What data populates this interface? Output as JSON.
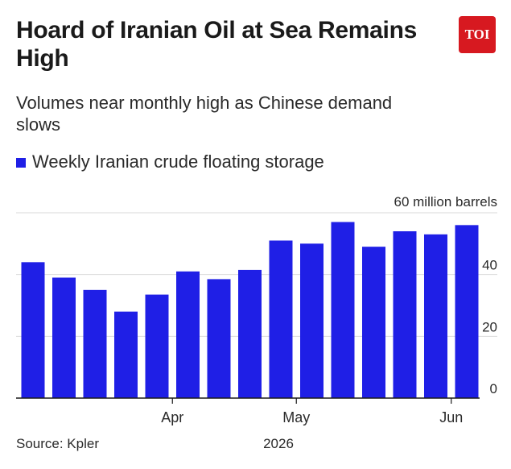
{
  "header": {
    "title": "Hoard of Iranian Oil at Sea Remains High",
    "subtitle": "Volumes near monthly high as Chinese demand slows",
    "logo_text": "TOI",
    "logo_color": "#d71920"
  },
  "legend": {
    "label": "Weekly Iranian crude floating storage",
    "color": "#1f1fe6"
  },
  "footer": {
    "source": "Source: Kpler",
    "year": "2026"
  },
  "chart_data": {
    "type": "bar",
    "title": "Hoard of Iranian Oil at Sea Remains High",
    "subtitle": "Volumes near monthly high as Chinese demand slows",
    "ylabel": "60 million barrels",
    "ylim": [
      0,
      60
    ],
    "y_ticks": [
      "0",
      "20",
      "40",
      "60 million barrels"
    ],
    "grid": true,
    "legend_placement": "top-left",
    "series": [
      {
        "name": "Weekly Iranian crude floating storage",
        "color": "#1f1fe6",
        "values": [
          44,
          39,
          35,
          28,
          33.5,
          41,
          38.5,
          41.5,
          51,
          50,
          57,
          49,
          54,
          53,
          56
        ]
      }
    ],
    "x_ticks": [
      {
        "label": "Apr",
        "bar_index": 4.5
      },
      {
        "label": "May",
        "bar_index": 8.5
      },
      {
        "label": "Jun",
        "bar_index": 13.5
      }
    ],
    "x_axis_year": "2026"
  }
}
